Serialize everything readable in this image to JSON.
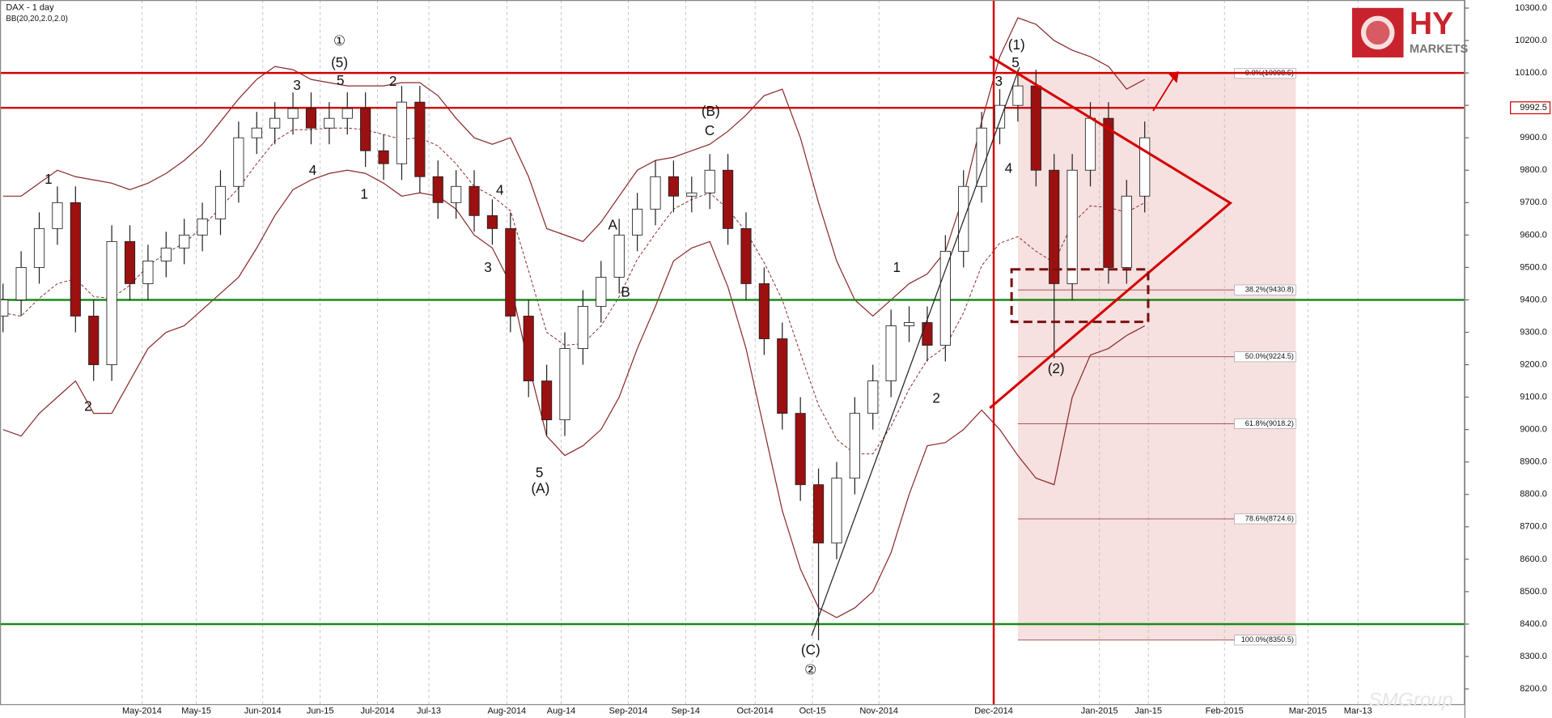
{
  "chart_data": {
    "type": "candlestick",
    "title": "DAX - 1 day",
    "subtitle": "BB(20,20,2.0,2.0)",
    "x": [
      0,
      3,
      6,
      9,
      12,
      15,
      18,
      21,
      24,
      27,
      30,
      33,
      36,
      39,
      42,
      45,
      48,
      51,
      54,
      57,
      60,
      63,
      66,
      69,
      72,
      75,
      78,
      81,
      84,
      87,
      90,
      93,
      96,
      99,
      102,
      105,
      108,
      111,
      114,
      117,
      120,
      123,
      126,
      129,
      132,
      135,
      138,
      141,
      144,
      147,
      150,
      153,
      156,
      159,
      162,
      165,
      168,
      171,
      174,
      177,
      180,
      183,
      186,
      189
    ],
    "open": [
      9350,
      9400,
      9500,
      9620,
      9700,
      9350,
      9200,
      9580,
      9450,
      9520,
      9560,
      9600,
      9650,
      9750,
      9900,
      9930,
      9960,
      9990,
      9930,
      9960,
      9990,
      9860,
      9820,
      10010,
      9780,
      9700,
      9750,
      9660,
      9620,
      9350,
      9150,
      9030,
      9250,
      9380,
      9470,
      9600,
      9680,
      9780,
      9720,
      9730,
      9800,
      9620,
      9450,
      9280,
      9050,
      8830,
      8650,
      8850,
      9050,
      9150,
      9320,
      9330,
      9260,
      9550,
      9750,
      9930,
      10000,
      10060,
      9800,
      9450,
      9800,
      9960,
      9500,
      9720
    ],
    "high": [
      9450,
      9550,
      9670,
      9750,
      9750,
      9400,
      9630,
      9630,
      9570,
      9610,
      9650,
      9700,
      9800,
      9950,
      9980,
      10010,
      10040,
      10040,
      10010,
      10040,
      10040,
      9910,
      10060,
      10060,
      9830,
      9800,
      9800,
      9710,
      9670,
      9400,
      9200,
      9300,
      9430,
      9520,
      9650,
      9730,
      9830,
      9830,
      9780,
      9850,
      9850,
      9670,
      9500,
      9330,
      9100,
      8880,
      8900,
      9100,
      9200,
      9370,
      9380,
      9380,
      9600,
      9800,
      9980,
      10050,
      10110,
      10110,
      9850,
      9850,
      10010,
      10010,
      9770,
      9950
    ],
    "low": [
      9300,
      9350,
      9450,
      9570,
      9300,
      9150,
      9150,
      9400,
      9400,
      9470,
      9510,
      9550,
      9600,
      9700,
      9850,
      9880,
      9910,
      9880,
      9880,
      9910,
      9810,
      9770,
      9770,
      9730,
      9650,
      9650,
      9610,
      9570,
      9300,
      9100,
      8980,
      8980,
      9200,
      9330,
      9420,
      9550,
      9630,
      9670,
      9670,
      9680,
      9570,
      9400,
      9230,
      9000,
      8780,
      8350,
      8600,
      8800,
      9000,
      9100,
      9270,
      9210,
      9210,
      9500,
      9700,
      9880,
      9950,
      9750,
      9220,
      9400,
      9750,
      9450,
      9450,
      9670
    ],
    "close": [
      9400,
      9500,
      9620,
      9700,
      9350,
      9200,
      9580,
      9450,
      9520,
      9560,
      9600,
      9650,
      9750,
      9900,
      9930,
      9960,
      9990,
      9930,
      9960,
      9990,
      9860,
      9820,
      10010,
      9780,
      9700,
      9750,
      9660,
      9620,
      9350,
      9150,
      9030,
      9250,
      9380,
      9470,
      9600,
      9680,
      9780,
      9720,
      9730,
      9800,
      9620,
      9450,
      9280,
      9050,
      8830,
      8650,
      8850,
      9050,
      9150,
      9320,
      9330,
      9260,
      9550,
      9750,
      9930,
      10000,
      10060,
      9800,
      9450,
      9800,
      9960,
      9500,
      9720,
      9900
    ],
    "up_color": "#ffffff",
    "down_color": "#9b1010",
    "bollinger": {
      "color": "#8b2a2a",
      "upper": [
        9720,
        9720,
        9760,
        9800,
        9780,
        9770,
        9760,
        9740,
        9760,
        9790,
        9830,
        9880,
        9950,
        10020,
        10080,
        10120,
        10110,
        10080,
        10070,
        10060,
        10060,
        10060,
        10070,
        10070,
        10030,
        9960,
        9900,
        9880,
        9900,
        9780,
        9620,
        9600,
        9580,
        9640,
        9720,
        9800,
        9830,
        9840,
        9860,
        9880,
        9920,
        9970,
        10030,
        10050,
        9900,
        9700,
        9520,
        9400,
        9350,
        9400,
        9450,
        9480,
        9550,
        9720,
        9950,
        10150,
        10270,
        10250,
        10200,
        10170,
        10150,
        10120,
        10050,
        10080
      ],
      "middle": [
        9360,
        9350,
        9405,
        9450,
        9465,
        9410,
        9405,
        9445,
        9505,
        9545,
        9575,
        9625,
        9685,
        9745,
        9820,
        9890,
        9925,
        9925,
        9930,
        9930,
        9925,
        9910,
        9895,
        9900,
        9875,
        9820,
        9750,
        9720,
        9675,
        9490,
        9300,
        9260,
        9265,
        9320,
        9410,
        9525,
        9605,
        9680,
        9710,
        9730,
        9680,
        9610,
        9515,
        9400,
        9235,
        9075,
        8970,
        8925,
        8925,
        9010,
        9125,
        9215,
        9255,
        9360,
        9505,
        9575,
        9595,
        9550,
        9515,
        9635,
        9690,
        9685,
        9670,
        9700
      ],
      "lower": [
        9000,
        8980,
        9050,
        9100,
        9150,
        9050,
        9050,
        9150,
        9250,
        9300,
        9320,
        9370,
        9420,
        9470,
        9560,
        9660,
        9740,
        9770,
        9790,
        9800,
        9790,
        9760,
        9720,
        9730,
        9720,
        9680,
        9600,
        9560,
        9450,
        9200,
        8980,
        8920,
        8950,
        9000,
        9100,
        9250,
        9380,
        9520,
        9560,
        9580,
        9440,
        9250,
        9000,
        8750,
        8570,
        8450,
        8420,
        8450,
        8500,
        8620,
        8800,
        8950,
        8960,
        9000,
        9060,
        9000,
        8920,
        8850,
        8830,
        9100,
        9230,
        9250,
        9290,
        9320
      ]
    },
    "xlim": [
      -0.5,
      242
    ],
    "ylim": [
      8150,
      10325
    ],
    "xticks": [
      {
        "value": 23,
        "label": "May-2014"
      },
      {
        "value": 32,
        "label": "May-15"
      },
      {
        "value": 43,
        "label": "Jun-2014"
      },
      {
        "value": 52.5,
        "label": "Jun-15"
      },
      {
        "value": 62,
        "label": "Jul-2014"
      },
      {
        "value": 70.5,
        "label": "Jul-13"
      },
      {
        "value": 83.4,
        "label": "Aug-2014"
      },
      {
        "value": 92.4,
        "label": "Aug-14"
      },
      {
        "value": 103.5,
        "label": "Sep-2014"
      },
      {
        "value": 113,
        "label": "Sep-14"
      },
      {
        "value": 124.5,
        "label": "Oct-2014"
      },
      {
        "value": 134,
        "label": "Oct-15"
      },
      {
        "value": 145,
        "label": "Nov-2014"
      },
      {
        "value": 164,
        "label": "Dec-2014"
      },
      {
        "value": 181.5,
        "label": "Jan-2015"
      },
      {
        "value": 189.6,
        "label": "Jan-15"
      },
      {
        "value": 202.2,
        "label": "Feb-2015"
      },
      {
        "value": 216,
        "label": "Mar-2015"
      },
      {
        "value": 224.3,
        "label": "Mar-13"
      }
    ],
    "yticks": [
      {
        "value": 10300,
        "label": "10300.0"
      },
      {
        "value": 10200,
        "label": "10200.0"
      },
      {
        "value": 10100,
        "label": "10100.0"
      },
      {
        "value": 10000,
        "label": "10000.0"
      },
      {
        "value": 9900,
        "label": "9900.0"
      },
      {
        "value": 9800,
        "label": "9800.0"
      },
      {
        "value": 9700,
        "label": "9700.0"
      },
      {
        "value": 9600,
        "label": "9600.0"
      },
      {
        "value": 9500,
        "label": "9500.0"
      },
      {
        "value": 9400,
        "label": "9400.0"
      },
      {
        "value": 9300,
        "label": "9300.0"
      },
      {
        "value": 9200,
        "label": "9200.0"
      },
      {
        "value": 9100,
        "label": "9100.0"
      },
      {
        "value": 9000,
        "label": "9000.0"
      },
      {
        "value": 8900,
        "label": "8900.0"
      },
      {
        "value": 8800,
        "label": "8800.0"
      },
      {
        "value": 8700,
        "label": "8700.0"
      },
      {
        "value": 8600,
        "label": "8600.0"
      },
      {
        "value": 8500,
        "label": "8500.0"
      },
      {
        "value": 8400,
        "label": "8400.0"
      },
      {
        "value": 8300,
        "label": "8300.0"
      },
      {
        "value": 8200,
        "label": "8200.0"
      }
    ],
    "grid": true,
    "last_price": {
      "value": 9992.5,
      "label": "9992.5"
    },
    "hlines": [
      {
        "value": 10100,
        "color": "#d40000"
      },
      {
        "value": 9992.5,
        "color": "#d40000"
      },
      {
        "value": 9400,
        "color": "#1a8a1a"
      },
      {
        "value": 8400,
        "color": "#1a8a1a"
      }
    ],
    "vline": {
      "x": 164,
      "color": "#d40000"
    },
    "fibonacci": {
      "color": "#8b2a2a",
      "fill": "#f6dada",
      "xrange": [
        168,
        214
      ],
      "levels": [
        {
          "value": 10098.5,
          "label": "0.0%(10098.5)"
        },
        {
          "value": 9430.8,
          "label": "38.2%(9430.8)"
        },
        {
          "value": 9224.5,
          "label": "50.0%(9224.5)"
        },
        {
          "value": 9018.2,
          "label": "61.8%(9018.2)"
        },
        {
          "value": 8724.6,
          "label": "78.6%(8724.6)"
        },
        {
          "value": 8350.5,
          "label": "100.0%(8350.5)"
        }
      ]
    },
    "wave_labels": [
      "1",
      "2",
      "3",
      "①",
      "(5)",
      "5",
      "4",
      "2",
      "1",
      "4",
      "3",
      "5",
      "(A)",
      "A",
      "B",
      "(B)",
      "C",
      "1",
      "2",
      "(C)",
      "②",
      "(1)",
      "5",
      "3",
      "4",
      "(2)"
    ],
    "logo": {
      "mark": "HY",
      "name": "MARKETS"
    },
    "watermark": "SMGroup"
  }
}
